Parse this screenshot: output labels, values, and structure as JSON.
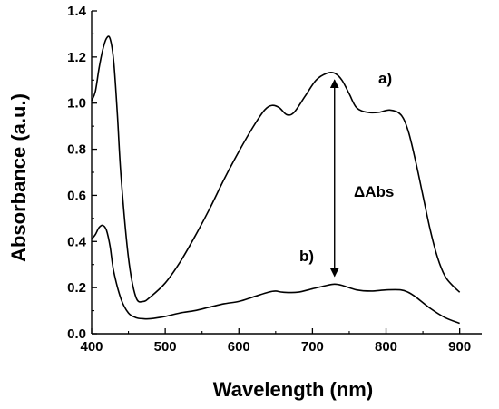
{
  "chart_data": {
    "type": "line",
    "xlabel": "Wavelength (nm)",
    "ylabel": "Absorbance (a.u.)",
    "xlim": [
      400,
      930
    ],
    "ylim": [
      0.0,
      1.4
    ],
    "xticks": [
      400,
      500,
      600,
      700,
      800,
      900
    ],
    "xtick_labels": [
      "400",
      "500",
      "600",
      "700",
      "800",
      "900"
    ],
    "yticks": [
      0.0,
      0.2,
      0.4,
      0.6,
      0.8,
      1.0,
      1.2,
      1.4
    ],
    "ytick_labels": [
      "0.0",
      "0.2",
      "0.4",
      "0.6",
      "0.8",
      "1.0",
      "1.2",
      "1.4"
    ],
    "grid": false,
    "series": [
      {
        "name": "a)",
        "x": [
          400,
          405,
          410,
          415,
          420,
          425,
          430,
          435,
          440,
          450,
          460,
          470,
          480,
          500,
          520,
          540,
          560,
          580,
          600,
          620,
          635,
          645,
          655,
          665,
          675,
          690,
          705,
          720,
          730,
          740,
          750,
          760,
          775,
          790,
          805,
          820,
          830,
          840,
          850,
          860,
          870,
          880,
          890,
          900
        ],
        "y": [
          1.01,
          1.05,
          1.15,
          1.23,
          1.28,
          1.28,
          1.18,
          0.95,
          0.68,
          0.33,
          0.16,
          0.14,
          0.16,
          0.22,
          0.31,
          0.42,
          0.54,
          0.67,
          0.79,
          0.9,
          0.97,
          0.99,
          0.98,
          0.95,
          0.96,
          1.03,
          1.1,
          1.13,
          1.13,
          1.1,
          1.04,
          0.98,
          0.96,
          0.96,
          0.97,
          0.95,
          0.88,
          0.75,
          0.6,
          0.45,
          0.33,
          0.25,
          0.21,
          0.18
        ]
      },
      {
        "name": "b)",
        "x": [
          400,
          405,
          410,
          415,
          420,
          425,
          430,
          440,
          450,
          460,
          470,
          480,
          500,
          520,
          540,
          560,
          580,
          600,
          620,
          640,
          650,
          660,
          680,
          700,
          720,
          730,
          740,
          760,
          780,
          800,
          820,
          830,
          840,
          860,
          880,
          900
        ],
        "y": [
          0.41,
          0.43,
          0.46,
          0.47,
          0.45,
          0.38,
          0.27,
          0.15,
          0.09,
          0.07,
          0.065,
          0.065,
          0.075,
          0.09,
          0.1,
          0.115,
          0.13,
          0.14,
          0.16,
          0.18,
          0.185,
          0.18,
          0.18,
          0.195,
          0.21,
          0.215,
          0.21,
          0.19,
          0.185,
          0.19,
          0.19,
          0.18,
          0.16,
          0.11,
          0.07,
          0.045
        ]
      }
    ],
    "annotations": {
      "label_a": "a)",
      "label_b": "b)",
      "delta": "ΔAbs",
      "arrow_x": 730,
      "arrow_y_top": 1.12,
      "arrow_y_bottom": 0.23
    }
  }
}
